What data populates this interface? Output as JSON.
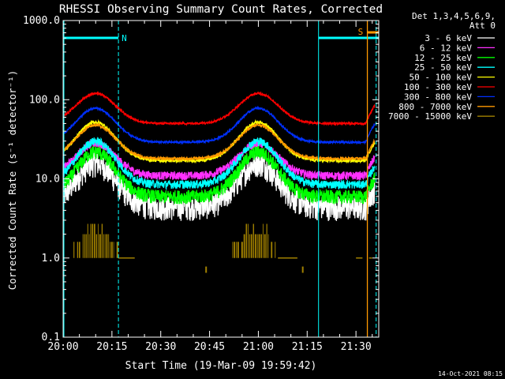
{
  "chart_data": {
    "type": "line",
    "title": "RHESSI Observing Summary Count Rates, Corrected",
    "xlabel": "Start Time (19-Mar-09 19:59:42)",
    "ylabel": "Corrected Count Rate (s⁻¹ detector⁻¹)",
    "y_scale": "log",
    "ylim": [
      0.1,
      1000
    ],
    "y_ticks": [
      "0.1",
      "1.0",
      "10.0",
      "100.0",
      "1000.0"
    ],
    "x_range_min": [
      0,
      97
    ],
    "x_ticks": [
      {
        "label": "20:00",
        "min": 0
      },
      {
        "label": "20:15",
        "min": 15
      },
      {
        "label": "20:30",
        "min": 30
      },
      {
        "label": "20:45",
        "min": 45
      },
      {
        "label": "21:00",
        "min": 60
      },
      {
        "label": "21:15",
        "min": 75
      },
      {
        "label": "21:30",
        "min": 90
      }
    ],
    "legend_header": [
      "Det 1,3,4,5,6,9,",
      "Att 0"
    ],
    "legend_position": "right",
    "series": [
      {
        "name": "3 - 6 keV",
        "color": "#ffffff",
        "low": 4.5,
        "high": 16,
        "noise": 0.35
      },
      {
        "name": "6 - 12 keV",
        "color": "#ff30ff",
        "low": 11,
        "high": 28,
        "noise": 0.12
      },
      {
        "name": "12 - 25 keV",
        "color": "#00ff00",
        "low": 6,
        "high": 22,
        "noise": 0.2
      },
      {
        "name": "25 - 50 keV",
        "color": "#00ffff",
        "low": 8.5,
        "high": 30,
        "noise": 0.12
      },
      {
        "name": "50 - 100 keV",
        "color": "#ffff00",
        "low": 17,
        "high": 52,
        "noise": 0.05
      },
      {
        "name": "100 - 300 keV",
        "color": "#ff0000",
        "low": 50,
        "high": 120,
        "noise": 0.03
      },
      {
        "name": "300 - 800 keV",
        "color": "#0030ff",
        "low": 29,
        "high": 78,
        "noise": 0.03
      },
      {
        "name": "800 - 7000 keV",
        "color": "#ff9900",
        "low": 18,
        "high": 48,
        "noise": 0.04
      },
      {
        "name": "7000 - 15000 keV",
        "color": "#a08000",
        "low": 1.0,
        "high": 2.5,
        "noise": 0.0
      }
    ],
    "annotations": [
      {
        "label": "N",
        "color": "#00ffff",
        "start_min": 0,
        "end_min": 17
      },
      {
        "label": "S",
        "color": "#ff9900",
        "start_min": 93.5,
        "end_min": 97
      }
    ],
    "footer": "14-Oct-2021 08:15"
  }
}
